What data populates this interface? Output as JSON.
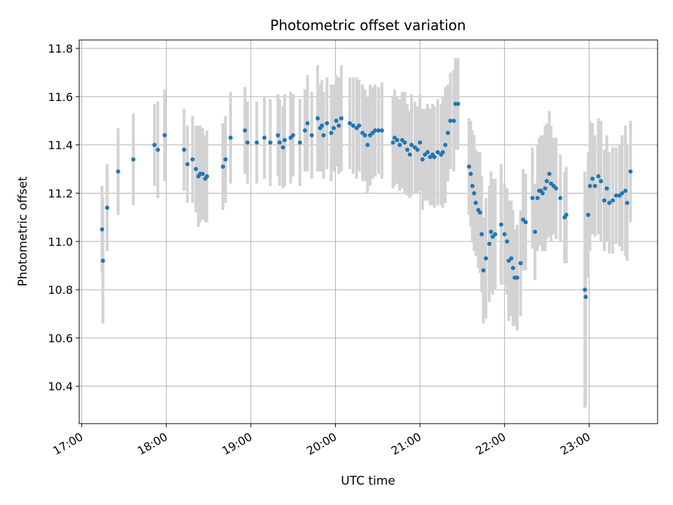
{
  "chart_data": {
    "type": "scatter",
    "title": "Photometric offset variation",
    "xlabel": "UTC time",
    "ylabel": "Photometric offset",
    "grid": true,
    "xlim": [
      16.97,
      23.81
    ],
    "ylim": [
      10.245,
      11.835
    ],
    "x_unit": "hours UTC",
    "xticks": [
      17,
      18,
      19,
      20,
      21,
      22,
      23
    ],
    "xtick_labels": [
      "17:00",
      "18:00",
      "19:00",
      "20:00",
      "21:00",
      "22:00",
      "23:00"
    ],
    "yticks": [
      10.4,
      10.6,
      10.8,
      11.0,
      11.2,
      11.4,
      11.6,
      11.8
    ],
    "ytick_labels": [
      "10.4",
      "10.6",
      "10.8",
      "11.0",
      "11.2",
      "11.4",
      "11.6",
      "11.8"
    ],
    "colors": {
      "marker": "#1f77b4",
      "errorbar": "#d3d3d3",
      "grid": "#b0b0b0"
    },
    "series": [
      {
        "name": "Photometric offset",
        "x": [
          17.24,
          17.25,
          17.3,
          17.43,
          17.61,
          17.86,
          17.9,
          17.98,
          18.21,
          18.25,
          18.31,
          18.35,
          18.38,
          18.4,
          18.43,
          18.46,
          18.48,
          18.67,
          18.7,
          18.76,
          18.93,
          18.96,
          19.07,
          19.16,
          19.23,
          19.32,
          19.34,
          19.38,
          19.4,
          19.47,
          19.5,
          19.58,
          19.64,
          19.67,
          19.72,
          19.79,
          19.82,
          19.84,
          19.86,
          19.9,
          19.95,
          19.98,
          20.01,
          20.04,
          20.07,
          20.17,
          20.21,
          20.25,
          20.28,
          20.32,
          20.35,
          20.38,
          20.41,
          20.44,
          20.47,
          20.51,
          20.55,
          20.68,
          20.7,
          20.73,
          20.76,
          20.79,
          20.82,
          20.85,
          20.88,
          20.9,
          20.94,
          20.97,
          21.0,
          21.03,
          21.06,
          21.09,
          21.12,
          21.15,
          21.17,
          21.21,
          21.25,
          21.27,
          21.3,
          21.33,
          21.36,
          21.4,
          21.42,
          21.45,
          21.58,
          21.6,
          21.62,
          21.64,
          21.66,
          21.69,
          21.71,
          21.73,
          21.75,
          21.78,
          21.82,
          21.84,
          21.86,
          21.89,
          21.96,
          22.0,
          22.03,
          22.05,
          22.08,
          22.1,
          22.12,
          22.15,
          22.19,
          22.22,
          22.25,
          22.33,
          22.36,
          22.39,
          22.41,
          22.43,
          22.45,
          22.48,
          22.5,
          22.53,
          22.55,
          22.58,
          22.61,
          22.66,
          22.71,
          22.73,
          22.95,
          22.96,
          22.99,
          23.01,
          23.04,
          23.07,
          23.11,
          23.14,
          23.18,
          23.21,
          23.24,
          23.28,
          23.32,
          23.36,
          23.39,
          23.43,
          23.45,
          23.49
        ],
        "y": [
          11.05,
          10.92,
          11.14,
          11.29,
          11.34,
          11.4,
          11.38,
          11.44,
          11.38,
          11.32,
          11.34,
          11.3,
          11.27,
          11.28,
          11.28,
          11.26,
          11.27,
          11.31,
          11.34,
          11.43,
          11.46,
          11.41,
          11.41,
          11.43,
          11.41,
          11.44,
          11.41,
          11.39,
          11.42,
          11.43,
          11.44,
          11.41,
          11.46,
          11.49,
          11.44,
          11.51,
          11.47,
          11.48,
          11.44,
          11.49,
          11.45,
          11.47,
          11.5,
          11.48,
          11.51,
          11.49,
          11.48,
          11.47,
          11.48,
          11.45,
          11.44,
          11.4,
          11.44,
          11.45,
          11.46,
          11.46,
          11.46,
          11.41,
          11.43,
          11.42,
          11.4,
          11.42,
          11.41,
          11.38,
          11.36,
          11.4,
          11.39,
          11.38,
          11.41,
          11.34,
          11.36,
          11.37,
          11.35,
          11.36,
          11.35,
          11.37,
          11.36,
          11.37,
          11.4,
          11.45,
          11.5,
          11.5,
          11.57,
          11.57,
          11.31,
          11.28,
          11.23,
          11.2,
          11.16,
          11.13,
          11.12,
          11.03,
          10.88,
          10.93,
          10.99,
          11.04,
          11.02,
          11.03,
          11.07,
          11.03,
          11.0,
          10.92,
          10.93,
          10.89,
          10.85,
          10.85,
          10.91,
          11.09,
          11.08,
          11.18,
          11.04,
          11.18,
          11.21,
          11.21,
          11.2,
          11.22,
          11.25,
          11.28,
          11.24,
          11.23,
          11.22,
          11.18,
          11.1,
          11.11,
          10.8,
          10.77,
          11.11,
          11.23,
          11.26,
          11.23,
          11.27,
          11.25,
          11.17,
          11.22,
          11.16,
          11.17,
          11.19,
          11.19,
          11.2,
          11.21,
          11.16,
          11.29
        ],
        "err": [
          0.18,
          0.26,
          0.18,
          0.18,
          0.19,
          0.17,
          0.2,
          0.19,
          0.17,
          0.16,
          0.18,
          0.18,
          0.21,
          0.2,
          0.19,
          0.18,
          0.19,
          0.18,
          0.18,
          0.19,
          0.18,
          0.17,
          0.17,
          0.17,
          0.18,
          0.17,
          0.18,
          0.17,
          0.19,
          0.19,
          0.17,
          0.18,
          0.17,
          0.2,
          0.18,
          0.22,
          0.18,
          0.19,
          0.18,
          0.19,
          0.2,
          0.18,
          0.19,
          0.2,
          0.22,
          0.19,
          0.2,
          0.21,
          0.19,
          0.2,
          0.19,
          0.2,
          0.21,
          0.19,
          0.19,
          0.18,
          0.2,
          0.19,
          0.2,
          0.18,
          0.19,
          0.2,
          0.21,
          0.19,
          0.18,
          0.21,
          0.19,
          0.18,
          0.2,
          0.21,
          0.19,
          0.2,
          0.2,
          0.21,
          0.21,
          0.22,
          0.21,
          0.23,
          0.24,
          0.2,
          0.2,
          0.21,
          0.19,
          0.19,
          0.2,
          0.22,
          0.23,
          0.24,
          0.22,
          0.24,
          0.25,
          0.24,
          0.22,
          0.25,
          0.24,
          0.25,
          0.24,
          0.23,
          0.25,
          0.21,
          0.22,
          0.25,
          0.24,
          0.24,
          0.2,
          0.22,
          0.22,
          0.21,
          0.2,
          0.21,
          0.2,
          0.22,
          0.22,
          0.23,
          0.24,
          0.26,
          0.24,
          0.26,
          0.24,
          0.2,
          0.21,
          0.18,
          0.19,
          0.2,
          0.49,
          0.45,
          0.26,
          0.27,
          0.23,
          0.21,
          0.24,
          0.25,
          0.21,
          0.22,
          0.21,
          0.22,
          0.2,
          0.21,
          0.24,
          0.27,
          0.24,
          0.21
        ]
      }
    ]
  }
}
